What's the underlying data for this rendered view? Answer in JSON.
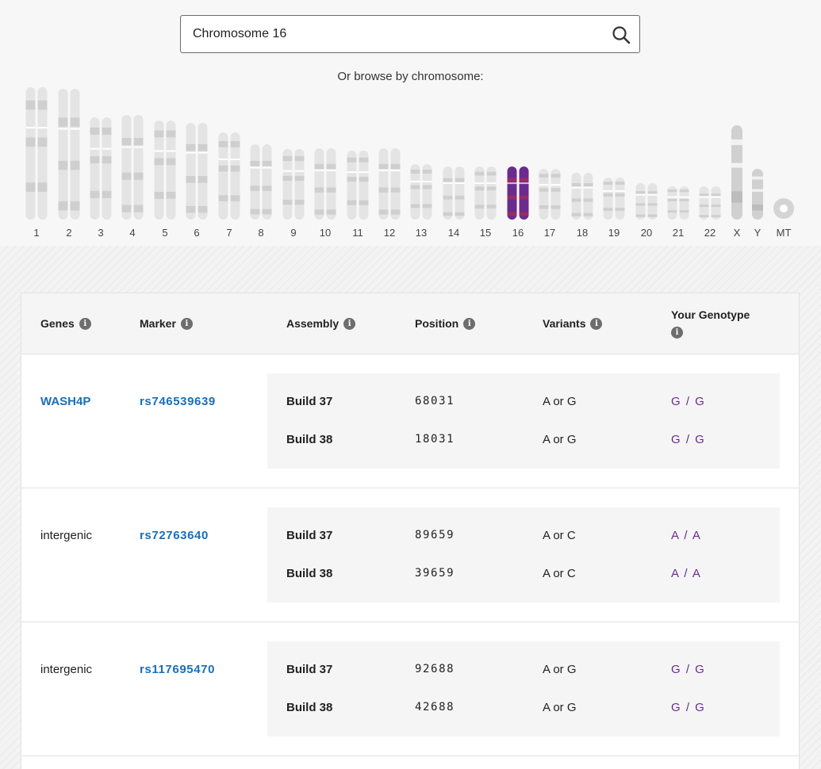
{
  "search": {
    "value": "Chromosome 16",
    "icon": "search-icon"
  },
  "browse_label": "Or browse by chromosome:",
  "colors": {
    "selected": "#6a2b8e",
    "link": "#1a6fb8",
    "chromosome": "#e4e4e4"
  },
  "chromosomes": [
    {
      "label": "1",
      "selected": false
    },
    {
      "label": "2",
      "selected": false
    },
    {
      "label": "3",
      "selected": false
    },
    {
      "label": "4",
      "selected": false
    },
    {
      "label": "5",
      "selected": false
    },
    {
      "label": "6",
      "selected": false
    },
    {
      "label": "7",
      "selected": false
    },
    {
      "label": "8",
      "selected": false
    },
    {
      "label": "9",
      "selected": false
    },
    {
      "label": "10",
      "selected": false
    },
    {
      "label": "11",
      "selected": false
    },
    {
      "label": "12",
      "selected": false
    },
    {
      "label": "13",
      "selected": false
    },
    {
      "label": "14",
      "selected": false
    },
    {
      "label": "15",
      "selected": false
    },
    {
      "label": "16",
      "selected": true
    },
    {
      "label": "17",
      "selected": false
    },
    {
      "label": "18",
      "selected": false
    },
    {
      "label": "19",
      "selected": false
    },
    {
      "label": "20",
      "selected": false
    },
    {
      "label": "21",
      "selected": false
    },
    {
      "label": "22",
      "selected": false
    },
    {
      "label": "X",
      "selected": false
    },
    {
      "label": "Y",
      "selected": false
    },
    {
      "label": "MT",
      "selected": false
    }
  ],
  "table": {
    "headers": {
      "genes": "Genes",
      "marker": "Marker",
      "assembly": "Assembly",
      "position": "Position",
      "variants": "Variants",
      "genotype": "Your Genotype"
    },
    "rows": [
      {
        "gene": "WASH4P",
        "gene_is_link": true,
        "marker": "rs746539639",
        "builds": [
          {
            "build": "Build 37",
            "position": "68031",
            "variants": "A or G",
            "genotype": "G / G"
          },
          {
            "build": "Build 38",
            "position": "18031",
            "variants": "A or G",
            "genotype": "G / G"
          }
        ]
      },
      {
        "gene": "intergenic",
        "gene_is_link": false,
        "marker": "rs72763640",
        "builds": [
          {
            "build": "Build 37",
            "position": "89659",
            "variants": "A or C",
            "genotype": "A / A"
          },
          {
            "build": "Build 38",
            "position": "39659",
            "variants": "A or C",
            "genotype": "A / A"
          }
        ]
      },
      {
        "gene": "intergenic",
        "gene_is_link": false,
        "marker": "rs117695470",
        "builds": [
          {
            "build": "Build 37",
            "position": "92688",
            "variants": "A or G",
            "genotype": "G / G"
          },
          {
            "build": "Build 38",
            "position": "42688",
            "variants": "A or G",
            "genotype": "G / G"
          }
        ]
      }
    ]
  }
}
